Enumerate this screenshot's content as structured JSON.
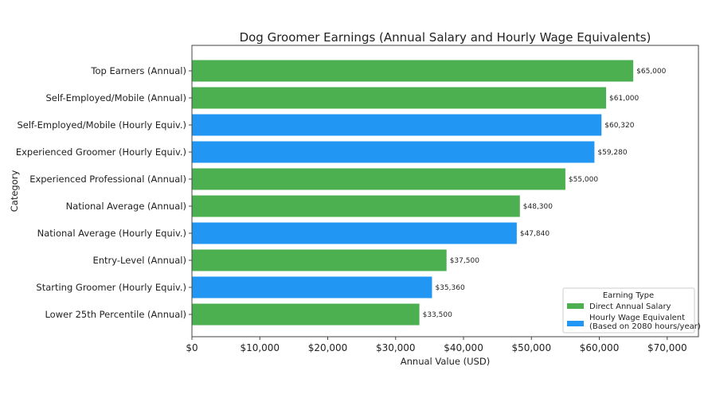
{
  "chart_data": {
    "type": "bar",
    "orientation": "horizontal",
    "title": "Dog Groomer Earnings (Annual Salary and Hourly Wage Equivalents)",
    "xlabel": "Annual Value (USD)",
    "ylabel": "Category",
    "xlim": [
      0,
      74600
    ],
    "xticks": [
      0,
      10000,
      20000,
      30000,
      40000,
      50000,
      60000,
      70000
    ],
    "xtick_labels": [
      "$0",
      "$10,000",
      "$20,000",
      "$30,000",
      "$40,000",
      "$50,000",
      "$60,000",
      "$70,000"
    ],
    "grid": false,
    "legend": {
      "title": "Earning Type",
      "placement": "bottom-right",
      "entries": [
        {
          "key": "annual",
          "label": "Direct Annual Salary",
          "color": "#4caf50"
        },
        {
          "key": "hourly",
          "label": "Hourly Wage Equivalent",
          "label2": "(Based on 2080 hours/year)",
          "color": "#2196f3"
        }
      ]
    },
    "bars": [
      {
        "category": "Top Earners (Annual)",
        "value": 65000,
        "label": "$65,000",
        "type": "annual"
      },
      {
        "category": "Self-Employed/Mobile (Annual)",
        "value": 61000,
        "label": "$61,000",
        "type": "annual"
      },
      {
        "category": "Self-Employed/Mobile (Hourly Equiv.)",
        "value": 60320,
        "label": "$60,320",
        "type": "hourly"
      },
      {
        "category": "Experienced Groomer (Hourly Equiv.)",
        "value": 59280,
        "label": "$59,280",
        "type": "hourly"
      },
      {
        "category": "Experienced Professional (Annual)",
        "value": 55000,
        "label": "$55,000",
        "type": "annual"
      },
      {
        "category": "National Average (Annual)",
        "value": 48300,
        "label": "$48,300",
        "type": "annual"
      },
      {
        "category": "National Average (Hourly Equiv.)",
        "value": 47840,
        "label": "$47,840",
        "type": "hourly"
      },
      {
        "category": "Entry-Level (Annual)",
        "value": 37500,
        "label": "$37,500",
        "type": "annual"
      },
      {
        "category": "Starting Groomer (Hourly Equiv.)",
        "value": 35360,
        "label": "$35,360",
        "type": "hourly"
      },
      {
        "category": "Lower 25th Percentile (Annual)",
        "value": 33500,
        "label": "$33,500",
        "type": "annual"
      }
    ]
  }
}
